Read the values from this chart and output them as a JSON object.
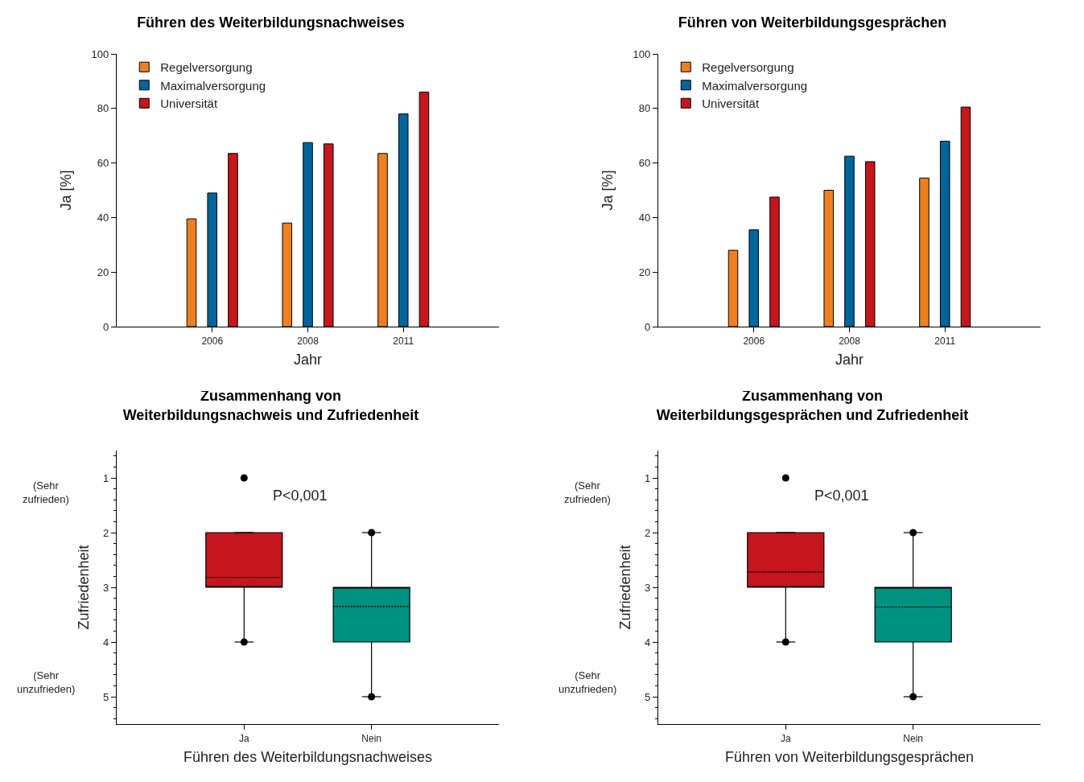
{
  "chart_data": [
    {
      "type": "bar",
      "title": "Führen des Weiterbildungsnachweises",
      "xlabel": "Jahr",
      "ylabel": "Ja [%]",
      "categories": [
        "2006",
        "2008",
        "2011"
      ],
      "series": [
        {
          "name": "Regelversorgung",
          "color": "#ee8022",
          "values": [
            39.5,
            38,
            63.5
          ]
        },
        {
          "name": "Maximalversorgung",
          "color": "#00659a",
          "values": [
            49,
            67.5,
            78
          ]
        },
        {
          "name": "Universität",
          "color": "#c4161c",
          "values": [
            63.5,
            67,
            86
          ]
        }
      ],
      "ylim": [
        0,
        100
      ],
      "yticks": [
        0,
        20,
        40,
        60,
        80,
        100
      ],
      "grid": false,
      "legend": "top left"
    },
    {
      "type": "bar",
      "title": "Führen von Weiterbildungsgesprächen",
      "xlabel": "Jahr",
      "ylabel": "Ja [%]",
      "categories": [
        "2006",
        "2008",
        "2011"
      ],
      "series": [
        {
          "name": "Regelversorgung",
          "color": "#ee8022",
          "values": [
            28,
            50,
            54.5
          ]
        },
        {
          "name": "Maximalversorgung",
          "color": "#00659a",
          "values": [
            35.5,
            62.5,
            68
          ]
        },
        {
          "name": "Universität",
          "color": "#c4161c",
          "values": [
            47.5,
            60.5,
            80.5
          ]
        }
      ],
      "ylim": [
        0,
        100
      ],
      "yticks": [
        0,
        20,
        40,
        60,
        80,
        100
      ],
      "grid": false,
      "legend": "top left"
    },
    {
      "type": "box",
      "title": "Zusammenhang von\nWeiterbildungsnachweis und Zufriedenheit",
      "xlabel": "Führen des Weiterbildungsnachweises",
      "ylabel": "Zufriedenheit",
      "categories": [
        "Ja",
        "Nein"
      ],
      "colors": [
        "#c4161c",
        "#009080"
      ],
      "boxes": [
        {
          "low": 2,
          "q1": 2,
          "median": 3,
          "q3": 3,
          "high": 4,
          "mean": 2.82,
          "outliers": [
            1,
            4
          ]
        },
        {
          "low": 2,
          "q1": 3,
          "median": 3,
          "q3": 4,
          "high": 5,
          "mean": 3.35,
          "outliers": [
            2,
            5
          ]
        }
      ],
      "ylim": [
        5.5,
        0.5
      ],
      "yticks": [
        1,
        2,
        3,
        4,
        5
      ],
      "grid": false,
      "legend": false,
      "annotations": [
        "P<0,001",
        "(Sehr zufrieden)",
        "(Sehr unzufrieden)"
      ]
    },
    {
      "type": "box",
      "title": "Zusammenhang von\nWeiterbildungsgesprächen und Zufriedenheit",
      "xlabel": "Führen von Weiterbildungsgesprächen",
      "ylabel": "Zufriedenheit",
      "categories": [
        "Ja",
        "Nein"
      ],
      "colors": [
        "#c4161c",
        "#009080"
      ],
      "boxes": [
        {
          "low": 2,
          "q1": 2,
          "median": 3,
          "q3": 3,
          "high": 4,
          "mean": 2.72,
          "outliers": [
            1,
            4
          ]
        },
        {
          "low": 2,
          "q1": 3,
          "median": 3,
          "q3": 4,
          "high": 5,
          "mean": 3.36,
          "outliers": [
            2,
            5
          ]
        }
      ],
      "ylim": [
        5.5,
        0.5
      ],
      "yticks": [
        1,
        2,
        3,
        4,
        5
      ],
      "grid": false,
      "legend": false,
      "annotations": [
        "P<0,001",
        "(Sehr zufrieden)",
        "(Sehr unzufrieden)"
      ]
    }
  ]
}
